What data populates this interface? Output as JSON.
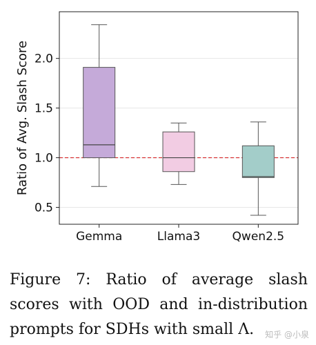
{
  "chart_data": {
    "type": "box",
    "title": "",
    "xlabel": "",
    "ylabel": "Ratio of Avg. Slash Score",
    "categories": [
      "Gemma",
      "Llama3",
      "Qwen2.5"
    ],
    "ylim": [
      0.33,
      2.47
    ],
    "yticks": [
      0.5,
      1.0,
      1.5,
      2.0
    ],
    "ytick_labels": [
      "0.5",
      "1.0",
      "1.5",
      "2.0"
    ],
    "grid": true,
    "reference_line": {
      "y": 1.0,
      "style": "dashed",
      "color": "#d62728"
    },
    "boxes": [
      {
        "name": "Gemma",
        "whisker_low": 0.71,
        "q1": 1.0,
        "median": 1.13,
        "q3": 1.91,
        "whisker_high": 2.34,
        "color": "#c5aad9"
      },
      {
        "name": "Llama3",
        "whisker_low": 0.73,
        "q1": 0.86,
        "median": 1.0,
        "q3": 1.26,
        "whisker_high": 1.35,
        "color": "#f2cce3"
      },
      {
        "name": "Qwen2.5",
        "whisker_low": 0.42,
        "q1": 0.8,
        "median": 0.81,
        "q3": 1.12,
        "whisker_high": 1.36,
        "color": "#a3cdc9"
      }
    ]
  },
  "caption": {
    "text": "Figure 7:  Ratio of average slash scores with OOD and in-distribution prompts for SDHs with small Λ."
  },
  "watermark": {
    "text": "知乎 @小泉"
  }
}
